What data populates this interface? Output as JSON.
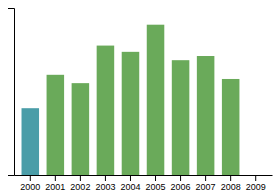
{
  "chart_data": {
    "type": "bar",
    "categories": [
      "2000",
      "2001",
      "2002",
      "2003",
      "2004",
      "2005",
      "2006",
      "2007",
      "2008",
      "2009"
    ],
    "values": [
      32,
      48,
      44,
      62,
      59,
      72,
      55,
      57,
      46,
      0
    ],
    "colors": [
      "#4a9da8",
      "#6aaa5a",
      "#6aaa5a",
      "#6aaa5a",
      "#6aaa5a",
      "#6aaa5a",
      "#6aaa5a",
      "#6aaa5a",
      "#6aaa5a",
      "#6aaa5a"
    ],
    "ylim": [
      0,
      80
    ],
    "yticks": [],
    "grid": false,
    "tick_labels": "x"
  }
}
